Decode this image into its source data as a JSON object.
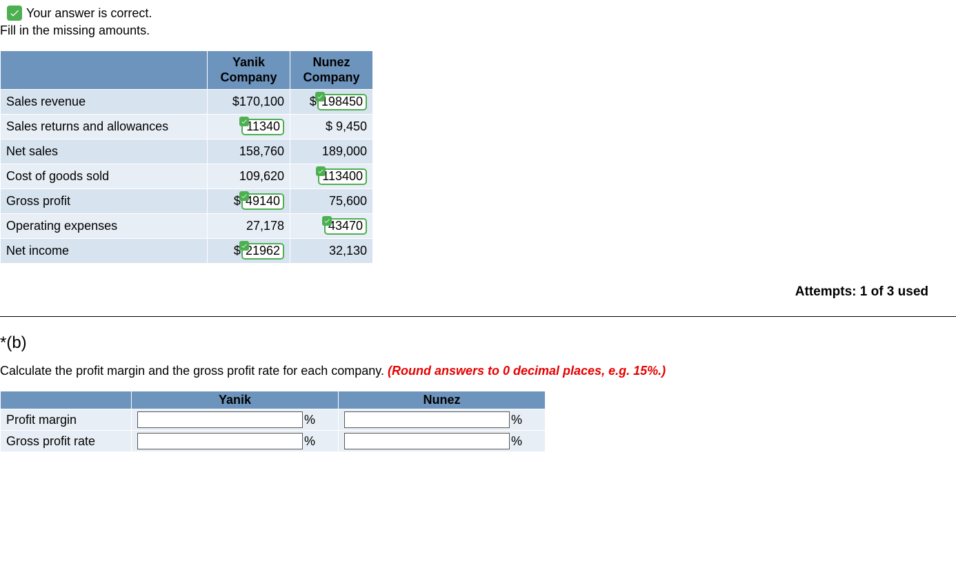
{
  "feedback": {
    "correct_text": "Your answer is correct.",
    "instruction": "Fill in the missing amounts."
  },
  "table": {
    "headers": {
      "blank": "",
      "col1": "Yanik Company",
      "col2": "Nunez Company"
    },
    "rows": [
      {
        "label": "Sales revenue",
        "c1": {
          "prefix": "",
          "text": "$170,100",
          "boxed": false
        },
        "c2": {
          "prefix": "$",
          "text": "198450",
          "boxed": true
        }
      },
      {
        "label": "Sales returns and allowances",
        "c1": {
          "prefix": "",
          "text": "11340",
          "boxed": true
        },
        "c2": {
          "prefix": "",
          "text": "$ 9,450",
          "boxed": false
        }
      },
      {
        "label": "Net sales",
        "c1": {
          "prefix": "",
          "text": "158,760",
          "boxed": false
        },
        "c2": {
          "prefix": "",
          "text": "189,000",
          "boxed": false
        }
      },
      {
        "label": "Cost of goods sold",
        "c1": {
          "prefix": "",
          "text": "109,620",
          "boxed": false
        },
        "c2": {
          "prefix": "",
          "text": "113400",
          "boxed": true
        }
      },
      {
        "label": "Gross profit",
        "c1": {
          "prefix": "$",
          "text": "49140",
          "boxed": true
        },
        "c2": {
          "prefix": "",
          "text": "75,600",
          "boxed": false
        }
      },
      {
        "label": "Operating expenses",
        "c1": {
          "prefix": "",
          "text": "27,178",
          "boxed": false
        },
        "c2": {
          "prefix": "",
          "text": "43470",
          "boxed": true
        }
      },
      {
        "label": "Net income",
        "c1": {
          "prefix": "$",
          "text": "21962",
          "boxed": true
        },
        "c2": {
          "prefix": "",
          "text": "32,130",
          "boxed": false
        }
      }
    ]
  },
  "attempts": "Attempts: 1 of 3 used",
  "partB": {
    "label": "*(b)",
    "instruction_plain": "Calculate the profit margin and the gross profit rate for each company. ",
    "instruction_hint": "(Round answers to 0 decimal places, e.g. 15%.)",
    "headers": {
      "blank": "",
      "col1": "Yanik",
      "col2": "Nunez"
    },
    "rows": [
      {
        "label": "Profit margin",
        "unit": "%"
      },
      {
        "label": "Gross profit rate",
        "unit": "%"
      }
    ]
  },
  "colors": {
    "header_bg": "#6d94bd",
    "row_bg": "#e8eef5",
    "row_alt_bg": "#d7e3ef",
    "correct_green": "#4CAF50",
    "hint_red": "#e60000"
  }
}
